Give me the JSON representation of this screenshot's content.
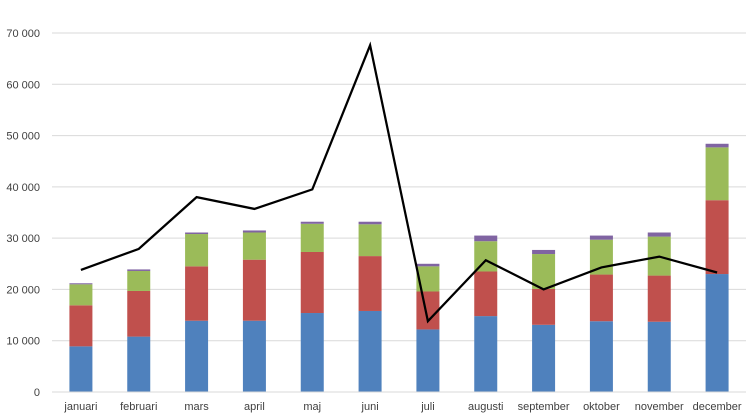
{
  "chart_data": {
    "type": "bar",
    "stacked": true,
    "categories": [
      "januari",
      "februari",
      "mars",
      "april",
      "maj",
      "juni",
      "juli",
      "augusti",
      "september",
      "oktober",
      "november",
      "december"
    ],
    "series": [
      {
        "color": "#4f81bd",
        "values": [
          8900,
          10800,
          13900,
          13900,
          15400,
          15800,
          12200,
          14800,
          13100,
          13800,
          13700,
          23000
        ]
      },
      {
        "color": "#c0504d",
        "values": [
          8000,
          8900,
          10600,
          11900,
          11900,
          10700,
          7400,
          8700,
          7000,
          9100,
          9000,
          14400
        ]
      },
      {
        "color": "#9bbb59",
        "values": [
          4100,
          3900,
          6300,
          5300,
          5500,
          6200,
          4900,
          5900,
          6800,
          6800,
          7600,
          10300
        ]
      },
      {
        "color": "#8064a2",
        "values": [
          200,
          300,
          300,
          400,
          400,
          500,
          500,
          1100,
          800,
          800,
          800,
          700
        ]
      }
    ],
    "line": {
      "color": "#000000",
      "values": [
        23800,
        27900,
        38000,
        35700,
        39500,
        67600,
        13800,
        25700,
        20000,
        24300,
        26400,
        23300
      ]
    },
    "ylim": [
      0,
      70000
    ],
    "yticks": [
      "0",
      "10 000",
      "20 000",
      "30 000",
      "40 000",
      "50 000",
      "60 000",
      "70 000"
    ],
    "grid": true,
    "title": "",
    "xlabel": "",
    "ylabel": ""
  }
}
